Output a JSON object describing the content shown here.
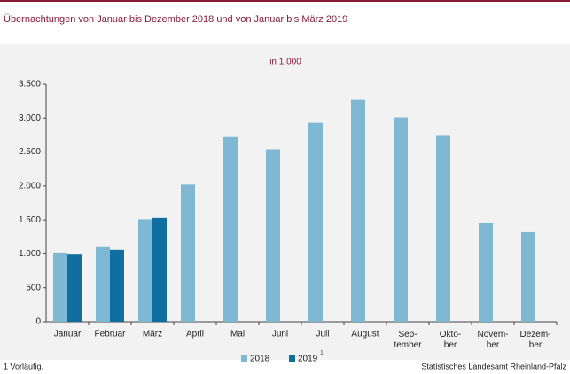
{
  "chart_data": {
    "type": "bar",
    "title": "Übernachtungen von Januar bis Dezember 2018 und von Januar bis März 2019",
    "subtitle": "in 1.000",
    "categories": [
      "Januar",
      "Februar",
      "März",
      "April",
      "Mai",
      "Juni",
      "Juli",
      "August",
      "Sep-\ntember",
      "Okto-\nber",
      "Novem-\nber",
      "Dezem-\nber"
    ],
    "series": [
      {
        "name": "2018",
        "color": "#7fb8d3",
        "values": [
          1020,
          1100,
          1510,
          2020,
          2720,
          2540,
          2930,
          3270,
          3010,
          2750,
          1450,
          1320
        ]
      },
      {
        "name": "2019",
        "color": "#0e6fa0",
        "note": "1",
        "values": [
          990,
          1060,
          1530,
          null,
          null,
          null,
          null,
          null,
          null,
          null,
          null,
          null
        ]
      }
    ],
    "ylim": [
      0,
      3500
    ],
    "yticks": [
      0,
      500,
      {
        "value": 1000,
        "label": "1.000"
      },
      {
        "value": 1500,
        "label": "1.500"
      },
      {
        "value": 2000,
        "label": "2.000"
      },
      {
        "value": 2500,
        "label": "2.500"
      },
      {
        "value": 3000,
        "label": "3.000"
      },
      {
        "value": 3500,
        "label": "3.500"
      }
    ],
    "grid": false,
    "footnote": "1 Vorläufig.",
    "source": "Statistisches Landesamt Rheinland-Pfalz"
  }
}
